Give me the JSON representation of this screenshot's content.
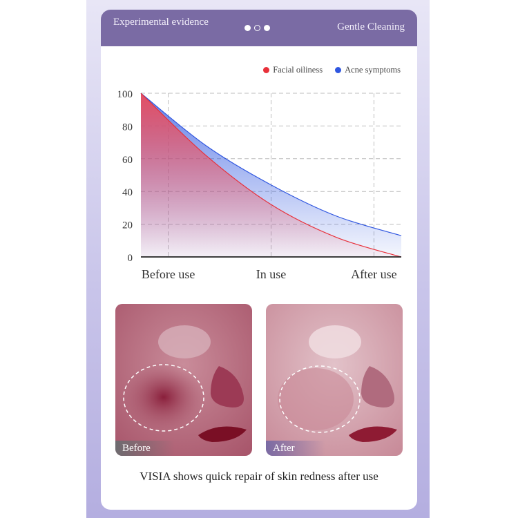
{
  "header": {
    "left_title": "Experimental evidence",
    "right_title": "Gentle Cleaning",
    "pager": [
      "filled",
      "hollow",
      "filled"
    ]
  },
  "colors": {
    "header_bg": "#7a6ba4",
    "facial_oiliness": "#e8303a",
    "acne_symptoms": "#2f56e0",
    "skin": "#c57f8f"
  },
  "chart_data": {
    "type": "area",
    "title": "",
    "xlabel": "",
    "ylabel": "",
    "categories": [
      "Before use",
      "In use",
      "After use"
    ],
    "ylim": [
      0,
      100
    ],
    "yticks": [
      0,
      20,
      40,
      60,
      80,
      100
    ],
    "grid": true,
    "legend_position": "top-right",
    "series": [
      {
        "name": "Facial oiliness",
        "color": "#e8303a",
        "x": [
          0,
          0.25,
          0.5,
          0.75,
          1.0
        ],
        "values": [
          100,
          62,
          32,
          12,
          0
        ]
      },
      {
        "name": "Acne symptoms",
        "color": "#2f56e0",
        "x": [
          0,
          0.25,
          0.5,
          0.75,
          1.0
        ],
        "values": [
          100,
          68,
          44,
          25,
          13
        ]
      }
    ]
  },
  "photos": [
    {
      "label": "Before",
      "label_bg": "#6e6c70"
    },
    {
      "label": "After",
      "label_bg": "#7a6ba4"
    }
  ],
  "caption": "VISIA shows quick repair of skin redness after use"
}
